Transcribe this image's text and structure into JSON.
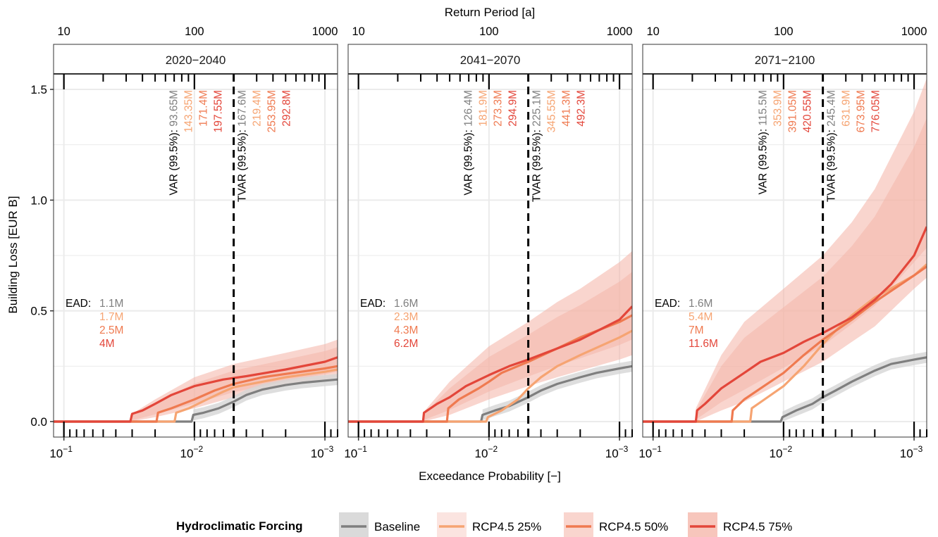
{
  "figure": {
    "top_axis_title": "Return Period [a]",
    "x_axis_title": "Exceedance Probability [−]",
    "y_axis_title": "Building Loss [EUR B]",
    "legend_title": "Hydroclimatic Forcing"
  },
  "colors": {
    "Baseline": "#7f7f7f",
    "RCP4.5 25%": "#f6a472",
    "RCP4.5 50%": "#ef7a50",
    "RCP4.5 75%": "#e3463a",
    "band": "#f4b3a6",
    "baseline_band": "#d6d6d6",
    "strip_bg": "#ffffff",
    "grid": "#ebebeb"
  },
  "chart_data": {
    "type": "line",
    "x_scale": "log-reversed",
    "xlim": [
      0.12,
      0.0008
    ],
    "ylim": [
      -0.07,
      1.57
    ],
    "x_ticks": [
      0.1,
      0.01,
      0.001
    ],
    "x_tick_labels": [
      [
        "10",
        "−1"
      ],
      [
        "10",
        "−2"
      ],
      [
        "10",
        "−3"
      ]
    ],
    "top_ticks": [
      10,
      100,
      1000
    ],
    "top_tick_labels": [
      "10",
      "100",
      "1000"
    ],
    "y_ticks": [
      0.0,
      0.5,
      1.0,
      1.5
    ],
    "y_tick_labels": [
      "0.0",
      "0.5",
      "1.0",
      "1.5"
    ],
    "series_names": [
      "Baseline",
      "RCP4.5 25%",
      "RCP4.5 50%",
      "RCP4.5 75%"
    ],
    "vline_x": 0.005,
    "grid": true,
    "legend_position": "bottom",
    "panels": [
      {
        "title": "2020−2040",
        "var_label": "VAR (99.5%): ",
        "tvar_label": "TVAR (99.5%): ",
        "var_values": [
          "93.65M",
          "143.35M",
          "171.4M",
          "197.55M"
        ],
        "tvar_values": [
          "167.6M",
          "219.4M",
          "253.95M",
          "292.8M"
        ],
        "ead_label": "EAD: ",
        "ead_values": [
          "1.1M",
          "1.7M",
          "2.5M",
          "4M"
        ],
        "series": [
          {
            "name": "Baseline",
            "points": [
              [
                0.12,
                0
              ],
              [
                0.0105,
                0
              ],
              [
                0.0102,
                0.03
              ],
              [
                0.0085,
                0.04
              ],
              [
                0.0065,
                0.06
              ],
              [
                0.005,
                0.09
              ],
              [
                0.004,
                0.12
              ],
              [
                0.003,
                0.145
              ],
              [
                0.002,
                0.165
              ],
              [
                0.0015,
                0.175
              ],
              [
                0.001,
                0.185
              ],
              [
                0.0008,
                0.19
              ]
            ]
          },
          {
            "name": "RCP4.5 25%",
            "points": [
              [
                0.12,
                0
              ],
              [
                0.0142,
                0
              ],
              [
                0.0138,
                0.04
              ],
              [
                0.011,
                0.06
              ],
              [
                0.008,
                0.1
              ],
              [
                0.006,
                0.135
              ],
              [
                0.005,
                0.155
              ],
              [
                0.003,
                0.18
              ],
              [
                0.002,
                0.2
              ],
              [
                0.001,
                0.225
              ],
              [
                0.0008,
                0.235
              ]
            ]
          },
          {
            "name": "RCP4.5 50%",
            "points": [
              [
                0.12,
                0
              ],
              [
                0.0195,
                0
              ],
              [
                0.019,
                0.04
              ],
              [
                0.015,
                0.06
              ],
              [
                0.01,
                0.1
              ],
              [
                0.007,
                0.14
              ],
              [
                0.005,
                0.17
              ],
              [
                0.003,
                0.2
              ],
              [
                0.002,
                0.215
              ],
              [
                0.001,
                0.24
              ],
              [
                0.0008,
                0.25
              ]
            ]
          },
          {
            "name": "RCP4.5 75%",
            "points": [
              [
                0.12,
                0
              ],
              [
                0.031,
                0
              ],
              [
                0.03,
                0.035
              ],
              [
                0.025,
                0.05
              ],
              [
                0.02,
                0.08
              ],
              [
                0.015,
                0.12
              ],
              [
                0.01,
                0.16
              ],
              [
                0.006,
                0.19
              ],
              [
                0.004,
                0.205
              ],
              [
                0.002,
                0.235
              ],
              [
                0.001,
                0.27
              ],
              [
                0.0008,
                0.29
              ]
            ]
          }
        ],
        "band": {
          "x": [
            0.031,
            0.02,
            0.01,
            0.005,
            0.002,
            0.001,
            0.0008
          ],
          "lower": [
            0,
            0.02,
            0.06,
            0.11,
            0.16,
            0.19,
            0.2
          ],
          "upper": [
            0.03,
            0.1,
            0.2,
            0.26,
            0.31,
            0.35,
            0.37
          ]
        }
      },
      {
        "title": "2041−2070",
        "var_label": "VAR (99.5%): ",
        "tvar_label": "TVAR (99.5%): ",
        "var_values": [
          "126.4M",
          "181.9M",
          "273.3M",
          "294.9M"
        ],
        "tvar_values": [
          "225.1M",
          "345.55M",
          "441.3M",
          "492.3M"
        ],
        "ead_label": "EAD: ",
        "ead_values": [
          "1.6M",
          "2.3M",
          "4.3M",
          "6.2M"
        ],
        "series": [
          {
            "name": "Baseline",
            "points": [
              [
                0.12,
                0
              ],
              [
                0.0115,
                0
              ],
              [
                0.0112,
                0.03
              ],
              [
                0.009,
                0.05
              ],
              [
                0.007,
                0.07
              ],
              [
                0.005,
                0.11
              ],
              [
                0.004,
                0.14
              ],
              [
                0.003,
                0.17
              ],
              [
                0.002,
                0.2
              ],
              [
                0.0015,
                0.22
              ],
              [
                0.001,
                0.24
              ],
              [
                0.0008,
                0.25
              ]
            ]
          },
          {
            "name": "RCP4.5 25%",
            "points": [
              [
                0.12,
                0
              ],
              [
                0.0105,
                0
              ],
              [
                0.0102,
                0.02
              ],
              [
                0.008,
                0.05
              ],
              [
                0.006,
                0.1
              ],
              [
                0.005,
                0.15
              ],
              [
                0.004,
                0.2
              ],
              [
                0.003,
                0.25
              ],
              [
                0.002,
                0.3
              ],
              [
                0.001,
                0.38
              ],
              [
                0.0008,
                0.41
              ]
            ]
          },
          {
            "name": "RCP4.5 50%",
            "points": [
              [
                0.12,
                0
              ],
              [
                0.021,
                0
              ],
              [
                0.0205,
                0.06
              ],
              [
                0.017,
                0.1
              ],
              [
                0.012,
                0.15
              ],
              [
                0.01,
                0.18
              ],
              [
                0.008,
                0.22
              ],
              [
                0.005,
                0.27
              ],
              [
                0.003,
                0.33
              ],
              [
                0.002,
                0.38
              ],
              [
                0.001,
                0.45
              ],
              [
                0.0008,
                0.48
              ]
            ]
          },
          {
            "name": "RCP4.5 75%",
            "points": [
              [
                0.12,
                0
              ],
              [
                0.032,
                0
              ],
              [
                0.0315,
                0.04
              ],
              [
                0.025,
                0.08
              ],
              [
                0.02,
                0.11
              ],
              [
                0.015,
                0.16
              ],
              [
                0.01,
                0.21
              ],
              [
                0.007,
                0.25
              ],
              [
                0.005,
                0.28
              ],
              [
                0.003,
                0.33
              ],
              [
                0.002,
                0.37
              ],
              [
                0.001,
                0.46
              ],
              [
                0.0008,
                0.52
              ]
            ]
          }
        ],
        "band": {
          "x": [
            0.032,
            0.02,
            0.01,
            0.005,
            0.003,
            0.002,
            0.001,
            0.0008
          ],
          "lower": [
            0,
            0.03,
            0.1,
            0.16,
            0.2,
            0.23,
            0.28,
            0.3
          ],
          "upper": [
            0.04,
            0.18,
            0.34,
            0.45,
            0.54,
            0.6,
            0.72,
            0.77
          ]
        }
      },
      {
        "title": "2071−2100",
        "var_label": "VAR (99.5%): ",
        "tvar_label": "TVAR (99.5%): ",
        "var_values": [
          "115.5M",
          "353.9M",
          "391.05M",
          "420.55M"
        ],
        "tvar_values": [
          "245.4M",
          "631.9M",
          "673.95M",
          "776.05M"
        ],
        "ead_label": "EAD: ",
        "ead_values": [
          "1.6M",
          "5.4M",
          "7M",
          "11.6M"
        ],
        "series": [
          {
            "name": "Baseline",
            "points": [
              [
                0.12,
                0
              ],
              [
                0.0105,
                0
              ],
              [
                0.0102,
                0.02
              ],
              [
                0.008,
                0.05
              ],
              [
                0.006,
                0.08
              ],
              [
                0.005,
                0.11
              ],
              [
                0.004,
                0.14
              ],
              [
                0.003,
                0.18
              ],
              [
                0.002,
                0.23
              ],
              [
                0.0015,
                0.26
              ],
              [
                0.001,
                0.28
              ],
              [
                0.0008,
                0.29
              ]
            ]
          },
          {
            "name": "RCP4.5 25%",
            "points": [
              [
                0.12,
                0
              ],
              [
                0.018,
                0
              ],
              [
                0.0175,
                0.06
              ],
              [
                0.014,
                0.1
              ],
              [
                0.01,
                0.16
              ],
              [
                0.007,
                0.25
              ],
              [
                0.005,
                0.35
              ],
              [
                0.004,
                0.41
              ],
              [
                0.003,
                0.48
              ],
              [
                0.002,
                0.56
              ],
              [
                0.001,
                0.66
              ],
              [
                0.0008,
                0.71
              ]
            ]
          },
          {
            "name": "RCP4.5 50%",
            "points": [
              [
                0.12,
                0
              ],
              [
                0.025,
                0
              ],
              [
                0.0245,
                0.05
              ],
              [
                0.02,
                0.1
              ],
              [
                0.015,
                0.15
              ],
              [
                0.01,
                0.22
              ],
              [
                0.007,
                0.3
              ],
              [
                0.005,
                0.37
              ],
              [
                0.003,
                0.46
              ],
              [
                0.002,
                0.54
              ],
              [
                0.001,
                0.66
              ],
              [
                0.0008,
                0.7
              ]
            ]
          },
          {
            "name": "RCP4.5 75%",
            "points": [
              [
                0.12,
                0
              ],
              [
                0.047,
                0
              ],
              [
                0.046,
                0.05
              ],
              [
                0.04,
                0.08
              ],
              [
                0.03,
                0.15
              ],
              [
                0.02,
                0.22
              ],
              [
                0.015,
                0.27
              ],
              [
                0.01,
                0.31
              ],
              [
                0.007,
                0.36
              ],
              [
                0.005,
                0.4
              ],
              [
                0.003,
                0.47
              ],
              [
                0.002,
                0.55
              ],
              [
                0.0015,
                0.62
              ],
              [
                0.001,
                0.75
              ],
              [
                0.0008,
                0.88
              ]
            ]
          }
        ],
        "band": {
          "x": [
            0.047,
            0.03,
            0.02,
            0.01,
            0.005,
            0.003,
            0.002,
            0.001,
            0.0008
          ],
          "lower": [
            0,
            0.05,
            0.09,
            0.18,
            0.27,
            0.36,
            0.43,
            0.6,
            0.65
          ],
          "upper": [
            0.06,
            0.3,
            0.45,
            0.6,
            0.75,
            0.9,
            1.05,
            1.4,
            1.55
          ]
        }
      }
    ]
  }
}
